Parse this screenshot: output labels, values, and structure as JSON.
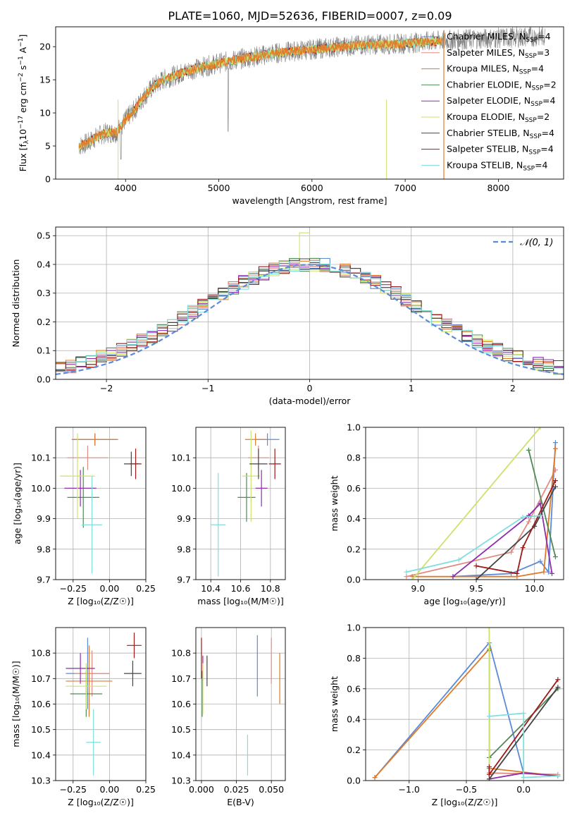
{
  "figure_title": "PLATE=1060, MJD=52636, FIBERID=0007, z=0.09",
  "models": [
    {
      "name": "Chabrier MILES",
      "nssp": "4",
      "color": "#5b8bd6"
    },
    {
      "name": "Salpeter MILES",
      "nssp": "3",
      "color": "#e08c85"
    },
    {
      "name": "Kroupa MILES",
      "nssp": "4",
      "color": "#e07a2a"
    },
    {
      "name": "Chabrier ELODIE",
      "nssp": "2",
      "color": "#4f8a55"
    },
    {
      "name": "Salpeter ELODIE",
      "nssp": "4",
      "color": "#8e2cae"
    },
    {
      "name": "Kroupa ELODIE",
      "nssp": "2",
      "color": "#cbe36a"
    },
    {
      "name": "Chabrier STELIB",
      "nssp": "4",
      "color": "#444444"
    },
    {
      "name": "Salpeter STELIB",
      "nssp": "4",
      "color": "#a11818"
    },
    {
      "name": "Kroupa STELIB",
      "nssp": "4",
      "color": "#7fdede"
    }
  ],
  "chart_data": [
    {
      "id": "spectrum",
      "type": "line",
      "xlabel": "wavelength [Angstrom, rest frame]",
      "ylabel_main": "Flux [f",
      "ylabel_sub": "λ",
      "ylabel_mid": "10",
      "ylabel_sup1": "−17",
      "ylabel_mid2": " erg cm",
      "ylabel_sup2": "−2",
      "ylabel_mid3": " s",
      "ylabel_sup3": "−1",
      "ylabel_mid4": " A",
      "ylabel_sup4": "−1",
      "ylabel_end": "]",
      "xlim": [
        3250,
        8700
      ],
      "ylim": [
        0,
        23
      ],
      "xticks": [
        4000,
        5000,
        6000,
        7000,
        8000
      ],
      "yticks": [
        0,
        5,
        10,
        15,
        20
      ],
      "continuum": {
        "x": [
          3500,
          3600,
          3700,
          3800,
          3900,
          4000,
          4100,
          4200,
          4300,
          4400,
          4500,
          4700,
          5000,
          5300,
          5600,
          6000,
          6300,
          6600,
          6900,
          7200,
          7500,
          8000,
          8500
        ],
        "y": [
          5.0,
          5.5,
          6.5,
          7.0,
          7.0,
          9.0,
          10.5,
          12.5,
          14.0,
          15.0,
          15.5,
          16.5,
          17.5,
          18.3,
          19.0,
          19.6,
          20.0,
          20.3,
          20.4,
          20.7,
          21.0,
          21.3,
          21.6
        ]
      },
      "model_range": [
        3500,
        7400
      ]
    },
    {
      "id": "residuals",
      "type": "bar",
      "xlabel": "(data-model)/error",
      "ylabel": "Normed distribution",
      "xlim": [
        -2.5,
        2.5
      ],
      "ylim": [
        0,
        0.53
      ],
      "xticks": [
        -2,
        -1,
        0,
        1,
        2
      ],
      "yticks": [
        0.0,
        0.1,
        0.2,
        0.3,
        0.4,
        0.5
      ],
      "legend": "𝒩(0, 1)",
      "bins": {
        "start": -2.5,
        "width": 0.1,
        "count": 50
      },
      "grid": true
    },
    {
      "id": "age-vs-Z",
      "type": "scatter",
      "xlabel": "Z [log₁₀(Z/Z☉)]",
      "ylabel": "age  [log₁₀(age/yr)]",
      "xlim": [
        -0.37,
        0.25
      ],
      "ylim": [
        9.7,
        10.2
      ],
      "xticks": [
        -0.25,
        0.0,
        0.25
      ],
      "yticks": [
        9.7,
        9.8,
        9.9,
        10.0,
        10.1
      ],
      "points": [
        {
          "x": -0.1,
          "y": 10.16,
          "xe": 0.15,
          "ye": 0.02
        },
        {
          "x": -0.15,
          "y": 10.1,
          "xe": 0.14,
          "ye": 0.04
        },
        {
          "x": -0.1,
          "y": 10.16,
          "xe": 0.16,
          "ye": 0.02
        },
        {
          "x": -0.18,
          "y": 9.97,
          "xe": 0.11,
          "ye": 0.1
        },
        {
          "x": -0.2,
          "y": 10.0,
          "xe": 0.11,
          "ye": 0.06
        },
        {
          "x": -0.22,
          "y": 10.04,
          "xe": 0.12,
          "ye": 0.14
        },
        {
          "x": 0.15,
          "y": 10.08,
          "xe": 0.05,
          "ye": 0.04
        },
        {
          "x": 0.18,
          "y": 10.08,
          "xe": 0.04,
          "ye": 0.05
        },
        {
          "x": -0.12,
          "y": 9.88,
          "xe": 0.07,
          "ye": 0.16
        }
      ]
    },
    {
      "id": "age-vs-mass",
      "type": "scatter",
      "xlabel": "mass [log₁₀(M/M☉)]",
      "ylabel": "",
      "xlim": [
        10.3,
        10.9
      ],
      "ylim": [
        9.7,
        10.2
      ],
      "xticks": [
        10.4,
        10.6,
        10.8
      ],
      "yticks": [
        9.7,
        9.8,
        9.9,
        10.0,
        10.1
      ],
      "points": [
        {
          "x": 10.78,
          "y": 10.16,
          "xe": 0.08,
          "ye": 0.02
        },
        {
          "x": 10.72,
          "y": 10.1,
          "xe": 0.07,
          "ye": 0.04
        },
        {
          "x": 10.7,
          "y": 10.16,
          "xe": 0.07,
          "ye": 0.02
        },
        {
          "x": 10.64,
          "y": 9.97,
          "xe": 0.06,
          "ye": 0.08
        },
        {
          "x": 10.74,
          "y": 10.0,
          "xe": 0.04,
          "ye": 0.06
        },
        {
          "x": 10.67,
          "y": 10.04,
          "xe": 0.06,
          "ye": 0.15
        },
        {
          "x": 10.72,
          "y": 10.08,
          "xe": 0.06,
          "ye": 0.05
        },
        {
          "x": 10.83,
          "y": 10.08,
          "xe": 0.04,
          "ye": 0.05
        },
        {
          "x": 10.45,
          "y": 9.88,
          "xe": 0.05,
          "ye": 0.17
        }
      ]
    },
    {
      "id": "massweight-vs-age",
      "type": "line",
      "xlabel": "age  [log₁₀(age/yr)]",
      "ylabel": "mass weight",
      "xlim": [
        8.55,
        10.25
      ],
      "ylim": [
        0,
        1.0
      ],
      "xticks": [
        9.0,
        9.5,
        10.0
      ],
      "yticks": [
        0.0,
        0.2,
        0.4,
        0.6,
        0.8,
        1.0
      ],
      "series": [
        {
          "x": [
            9.3,
            9.8,
            10.05,
            10.12,
            10.18
          ],
          "y": [
            0.02,
            0.04,
            0.12,
            0.05,
            0.9
          ]
        },
        {
          "x": [
            8.9,
            9.8,
            9.95,
            10.18
          ],
          "y": [
            0.02,
            0.18,
            0.38,
            0.72
          ]
        },
        {
          "x": [
            8.95,
            9.85,
            10.08,
            10.18
          ],
          "y": [
            0.02,
            0.02,
            0.05,
            0.86
          ]
        },
        {
          "x": [
            9.95,
            10.18
          ],
          "y": [
            0.85,
            0.15
          ]
        },
        {
          "x": [
            9.3,
            9.95,
            10.05,
            10.15
          ],
          "y": [
            0.02,
            0.42,
            0.5,
            0.04
          ]
        },
        {
          "x": [
            8.95,
            10.05
          ],
          "y": [
            0.0,
            1.0
          ]
        },
        {
          "x": [
            9.5,
            10.0,
            10.18
          ],
          "y": [
            0.0,
            0.35,
            0.61
          ]
        },
        {
          "x": [
            9.5,
            9.85,
            9.9,
            10.18
          ],
          "y": [
            0.09,
            0.04,
            0.21,
            0.65
          ]
        },
        {
          "x": [
            8.9,
            9.35,
            9.9,
            10.05
          ],
          "y": [
            0.05,
            0.13,
            0.41,
            0.42
          ]
        }
      ]
    },
    {
      "id": "mass-vs-Z",
      "type": "scatter",
      "xlabel": "Z [log₁₀(Z/Z☉)]",
      "ylabel": "mass [log₁₀(M/M☉)]",
      "xlim": [
        -0.37,
        0.25
      ],
      "ylim": [
        10.3,
        10.9
      ],
      "xticks": [
        -0.25,
        0.0,
        0.25
      ],
      "yticks": [
        10.3,
        10.4,
        10.5,
        10.6,
        10.7,
        10.8
      ],
      "points": [
        {
          "x": -0.15,
          "y": 10.72,
          "xe": 0.15,
          "ye": 0.14
        },
        {
          "x": -0.12,
          "y": 10.72,
          "xe": 0.12,
          "ye": 0.09
        },
        {
          "x": -0.14,
          "y": 10.69,
          "xe": 0.16,
          "ye": 0.14
        },
        {
          "x": -0.16,
          "y": 10.64,
          "xe": 0.11,
          "ye": 0.09
        },
        {
          "x": -0.2,
          "y": 10.74,
          "xe": 0.1,
          "ye": 0.06
        },
        {
          "x": -0.16,
          "y": 10.67,
          "xe": 0.14,
          "ye": 0.09
        },
        {
          "x": 0.16,
          "y": 10.72,
          "xe": 0.06,
          "ye": 0.05
        },
        {
          "x": 0.17,
          "y": 10.83,
          "xe": 0.05,
          "ye": 0.05
        },
        {
          "x": -0.11,
          "y": 10.45,
          "xe": 0.05,
          "ye": 0.13
        }
      ]
    },
    {
      "id": "mass-vs-ebv",
      "type": "scatter",
      "xlabel": "E(B-V)",
      "ylabel": "",
      "xlim": [
        -0.004,
        0.06
      ],
      "ylim": [
        10.3,
        10.9
      ],
      "xticks": [
        0.0,
        0.025,
        0.05
      ],
      "xticklabels": [
        "0.000",
        "0.025",
        "0.050"
      ],
      "yticks": [
        10.3,
        10.4,
        10.5,
        10.6,
        10.7,
        10.8
      ],
      "points": [
        {
          "x": 0.04,
          "y": 10.75,
          "xe": 0,
          "ye": 0.12
        },
        {
          "x": 0.05,
          "y": 10.77,
          "xe": 0,
          "ye": 0.09
        },
        {
          "x": 0.056,
          "y": 10.7,
          "xe": 0,
          "ye": 0.1
        },
        {
          "x": 0.0005,
          "y": 10.64,
          "xe": 0,
          "ye": 0.09
        },
        {
          "x": 0.001,
          "y": 10.74,
          "xe": 0,
          "ye": 0.05
        },
        {
          "x": 0.001,
          "y": 10.66,
          "xe": 0,
          "ye": 0.1
        },
        {
          "x": 0.004,
          "y": 10.73,
          "xe": 0,
          "ye": 0.06
        },
        {
          "x": 0.0,
          "y": 10.78,
          "xe": 0,
          "ye": 0.08
        },
        {
          "x": 0.033,
          "y": 10.4,
          "xe": 0,
          "ye": 0.08
        }
      ]
    },
    {
      "id": "massweight-vs-Z",
      "type": "line",
      "xlabel": "Z [log₁₀(Z/Z☉)]",
      "ylabel": "mass weight",
      "xlim": [
        -1.38,
        0.35
      ],
      "ylim": [
        0,
        1.0
      ],
      "xticks": [
        -1.0,
        -0.5,
        0.0
      ],
      "xticklabels": [
        "−1.0",
        "−0.5",
        "0.0"
      ],
      "yticks": [
        0.0,
        0.2,
        0.4,
        0.6,
        0.8,
        1.0
      ],
      "series": [
        {
          "x": [
            -1.3,
            -0.3,
            0.0,
            0.3
          ],
          "y": [
            0.02,
            0.9,
            0.05,
            0.03
          ]
        },
        {
          "x": [
            -0.3,
            -0.3,
            0.3
          ],
          "y": [
            0.2,
            0.05,
            0.04
          ]
        },
        {
          "x": [
            -1.3,
            -0.3,
            -0.3,
            0.3
          ],
          "y": [
            0.02,
            0.86,
            0.08,
            0.03
          ]
        },
        {
          "x": [
            -0.3,
            -0.3,
            0.3
          ],
          "y": [
            0.85,
            0.15,
            0.6
          ]
        },
        {
          "x": [
            -0.3,
            0.0,
            0.3
          ],
          "y": [
            0.01,
            0.05,
            0.03
          ]
        },
        {
          "x": [
            -0.3,
            -0.3
          ],
          "y": [
            1.0,
            0.0
          ]
        },
        {
          "x": [
            -0.3,
            0.3
          ],
          "y": [
            0.01,
            0.61
          ]
        },
        {
          "x": [
            -0.3,
            -0.3,
            0.3
          ],
          "y": [
            0.09,
            0.04,
            0.66
          ]
        },
        {
          "x": [
            -0.3,
            0.0,
            0.0,
            0.3
          ],
          "y": [
            0.42,
            0.44,
            0.02,
            0.03
          ]
        }
      ]
    }
  ]
}
